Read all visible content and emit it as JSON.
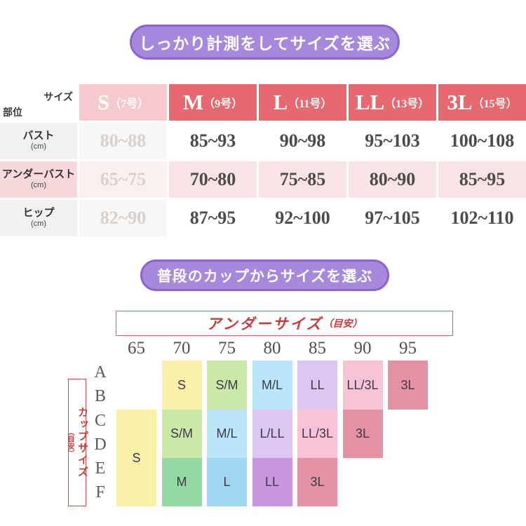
{
  "banners": {
    "measure": "しっかり計測をしてサイズを選ぶ",
    "cup": "普段のカップからサイズを選ぶ"
  },
  "colors": {
    "banner_fill": "#a688dc",
    "banner_border": "#8f63cf",
    "header_red": "#e5696e",
    "header_muted_pink": "#f6c9cc",
    "row_pink_label": "#f8d9db",
    "row_pink_cell": "#fae3e5",
    "row_gray_label": "#f1f1f1",
    "muted_text": "#d6d1cd",
    "value_text": "#4b4b4b",
    "accent_red_text": "#c53d3d"
  },
  "size_table": {
    "corner_top": "サイズ",
    "corner_bottom": "部位",
    "columns": [
      {
        "size": "S",
        "tag": "（7号）",
        "muted": true
      },
      {
        "size": "M",
        "tag": "（9号）"
      },
      {
        "size": "L",
        "tag": "（11号）"
      },
      {
        "size": "LL",
        "tag": "（13号）"
      },
      {
        "size": "3L",
        "tag": "（15号）"
      }
    ],
    "rows": [
      {
        "label": "バスト",
        "unit": "(cm)",
        "theme": "gray",
        "values": [
          "80~88",
          "85~93",
          "90~98",
          "95~103",
          "100~108"
        ]
      },
      {
        "label": "アンダーバスト",
        "unit": "(cm)",
        "theme": "pink",
        "values": [
          "65~75",
          "70~80",
          "75~85",
          "80~90",
          "85~95"
        ]
      },
      {
        "label": "ヒップ",
        "unit": "(cm)",
        "theme": "gray",
        "values": [
          "82~90",
          "87~95",
          "92~100",
          "97~105",
          "102~110"
        ]
      }
    ]
  },
  "cup_chart": {
    "under_header": {
      "title": "アンダーサイズ",
      "note": "（目安）"
    },
    "side_label": {
      "title": "カップサイズ",
      "note": "（目安）"
    },
    "under_sizes": [
      "65",
      "70",
      "75",
      "80",
      "85",
      "90",
      "95"
    ],
    "cup_rows": [
      "A",
      "B",
      "C",
      "D",
      "E",
      "F"
    ],
    "palette": {
      "yellow": "#faf0a9",
      "lightgreen": "#cbe8a6",
      "green": "#94d9a3",
      "lightblue": "#bbe5f8",
      "blue": "#9fd7f2",
      "lavender": "#dbc7f1",
      "purple": "#ca96dd",
      "pink": "#f9c3d7",
      "rose": "#e292a4"
    },
    "cells": [
      {
        "col": 0,
        "band_start": 1,
        "band_end": 2,
        "label": "S",
        "color": "yellow"
      },
      {
        "col": 1,
        "band_start": 0,
        "band_end": 0,
        "label": "S",
        "color": "yellow"
      },
      {
        "col": 1,
        "band_start": 1,
        "band_end": 1,
        "label": "S/M",
        "color": "lightgreen"
      },
      {
        "col": 1,
        "band_start": 2,
        "band_end": 2,
        "label": "M",
        "color": "green"
      },
      {
        "col": 2,
        "band_start": 0,
        "band_end": 0,
        "label": "S/M",
        "color": "lightgreen"
      },
      {
        "col": 2,
        "band_start": 1,
        "band_end": 1,
        "label": "M/L",
        "color": "lightblue"
      },
      {
        "col": 2,
        "band_start": 2,
        "band_end": 2,
        "label": "L",
        "color": "blue"
      },
      {
        "col": 3,
        "band_start": 0,
        "band_end": 0,
        "label": "M/L",
        "color": "lightblue"
      },
      {
        "col": 3,
        "band_start": 1,
        "band_end": 1,
        "label": "L/LL",
        "color": "lavender"
      },
      {
        "col": 3,
        "band_start": 2,
        "band_end": 2,
        "label": "LL",
        "color": "purple"
      },
      {
        "col": 4,
        "band_start": 0,
        "band_end": 0,
        "label": "LL",
        "color": "lavender"
      },
      {
        "col": 4,
        "band_start": 1,
        "band_end": 1,
        "label": "LL/3L",
        "color": "pink"
      },
      {
        "col": 4,
        "band_start": 2,
        "band_end": 2,
        "label": "3L",
        "color": "rose"
      },
      {
        "col": 5,
        "band_start": 0,
        "band_end": 0,
        "label": "LL/3L",
        "color": "pink"
      },
      {
        "col": 5,
        "band_start": 1,
        "band_end": 1,
        "label": "3L",
        "color": "rose"
      },
      {
        "col": 6,
        "band_start": 0,
        "band_end": 0,
        "label": "3L",
        "color": "rose"
      }
    ]
  },
  "chart_data": [
    {
      "type": "table",
      "title": "しっかり計測をしてサイズを選ぶ",
      "columns": [
        "S（7号）",
        "M（9号）",
        "L（11号）",
        "LL（13号）",
        "3L（15号）"
      ],
      "rows": [
        "バスト(cm)",
        "アンダーバスト(cm)",
        "ヒップ(cm)"
      ],
      "values": [
        [
          "80~88",
          "85~93",
          "90~98",
          "95~103",
          "100~108"
        ],
        [
          "65~75",
          "70~80",
          "75~85",
          "80~90",
          "85~95"
        ],
        [
          "82~90",
          "87~95",
          "92~100",
          "97~105",
          "102~110"
        ]
      ]
    },
    {
      "type": "table",
      "title": "普段のカップからサイズを選ぶ",
      "x_header": "アンダーサイズ（目安）",
      "y_header": "カップサイズ（目安）",
      "columns": [
        65,
        70,
        75,
        80,
        85,
        90,
        95
      ],
      "rows": [
        "A",
        "B",
        "C",
        "D",
        "E",
        "F"
      ],
      "values": [
        [
          "",
          "S",
          "S/M",
          "M/L",
          "LL",
          "LL/3L",
          "3L"
        ],
        [
          "",
          "S",
          "S/M",
          "M/L",
          "LL",
          "LL/3L",
          "3L"
        ],
        [
          "S",
          "S/M",
          "M/L",
          "L/LL",
          "LL/3L",
          "3L",
          ""
        ],
        [
          "S",
          "S/M",
          "M/L",
          "L/LL",
          "LL/3L",
          "3L",
          ""
        ],
        [
          "S",
          "M",
          "L",
          "LL",
          "3L",
          "",
          ""
        ],
        [
          "S",
          "M",
          "L",
          "LL",
          "3L",
          "",
          ""
        ]
      ]
    }
  ]
}
